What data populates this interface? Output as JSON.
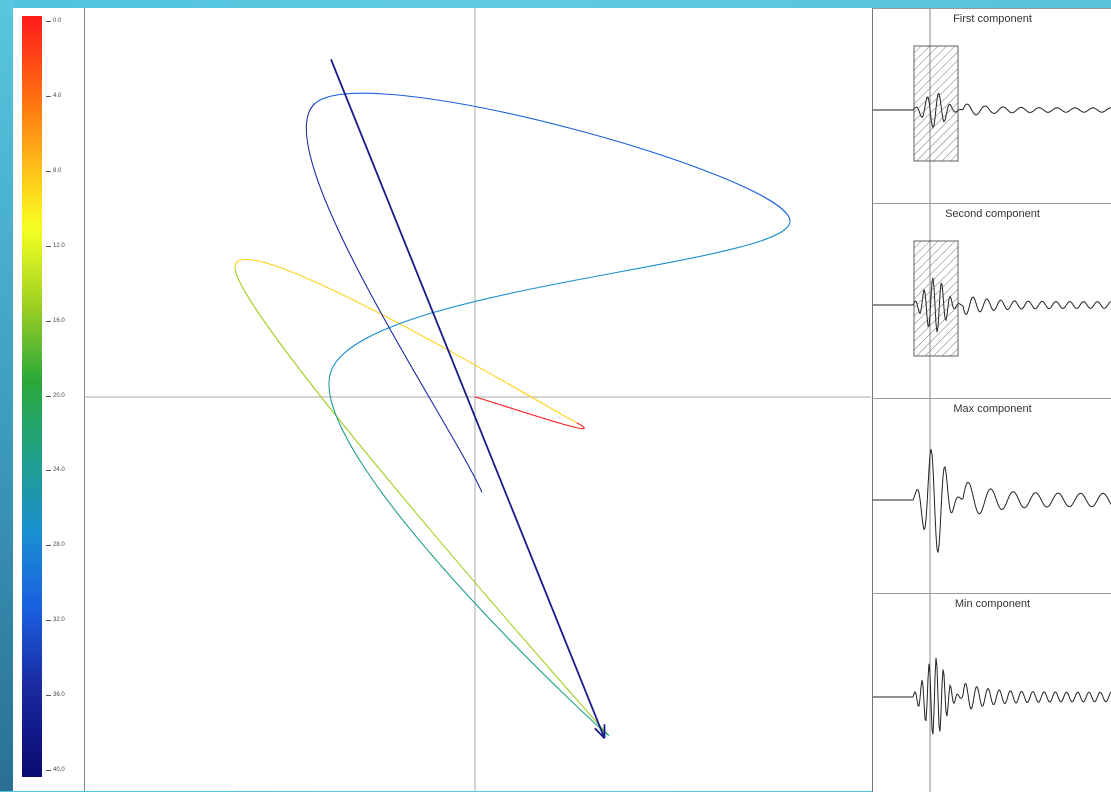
{
  "colorbar": {
    "ticks": [
      "0.0",
      "4.0",
      "8.0",
      "12.0",
      "16.0",
      "20.0",
      "24.0",
      "28.0",
      "32.0",
      "36.0",
      "40.0"
    ],
    "colors": [
      "#ff1a1a",
      "#ff7a10",
      "#ffd11a",
      "#f5ff22",
      "#9fd022",
      "#2aa83a",
      "#1fa08a",
      "#1a8fd0",
      "#1a5fe0",
      "#1a2aa0",
      "#0a0a70"
    ]
  },
  "chart_data": {
    "type": "line",
    "description_kind": "particle motion hodogram",
    "xlim": [
      -1,
      1
    ],
    "ylim": [
      -1,
      1
    ],
    "crosshair": [
      0,
      0
    ],
    "arrow": {
      "from": [
        -0.36,
        0.92
      ],
      "to": [
        0.37,
        -0.93
      ],
      "color": "#1a1a8a"
    },
    "trajectory": [
      {
        "x": 0.0,
        "y": 0.0,
        "t": 0
      },
      {
        "x": 0.29,
        "y": -0.07,
        "t": 2
      },
      {
        "x": -0.6,
        "y": 0.35,
        "t": 12
      },
      {
        "x": 0.38,
        "y": -0.92,
        "t": 20
      },
      {
        "x": -0.36,
        "y": 0.07,
        "t": 24
      },
      {
        "x": 0.9,
        "y": 0.48,
        "t": 28
      },
      {
        "x": -0.4,
        "y": 0.8,
        "t": 32
      },
      {
        "x": 0.02,
        "y": -0.26,
        "t": 36
      }
    ]
  },
  "seismograms": [
    {
      "title": "First component",
      "window": true
    },
    {
      "title": "Second component",
      "window": true
    },
    {
      "title": "Max component",
      "window": false
    },
    {
      "title": "Min component",
      "window": false
    }
  ]
}
